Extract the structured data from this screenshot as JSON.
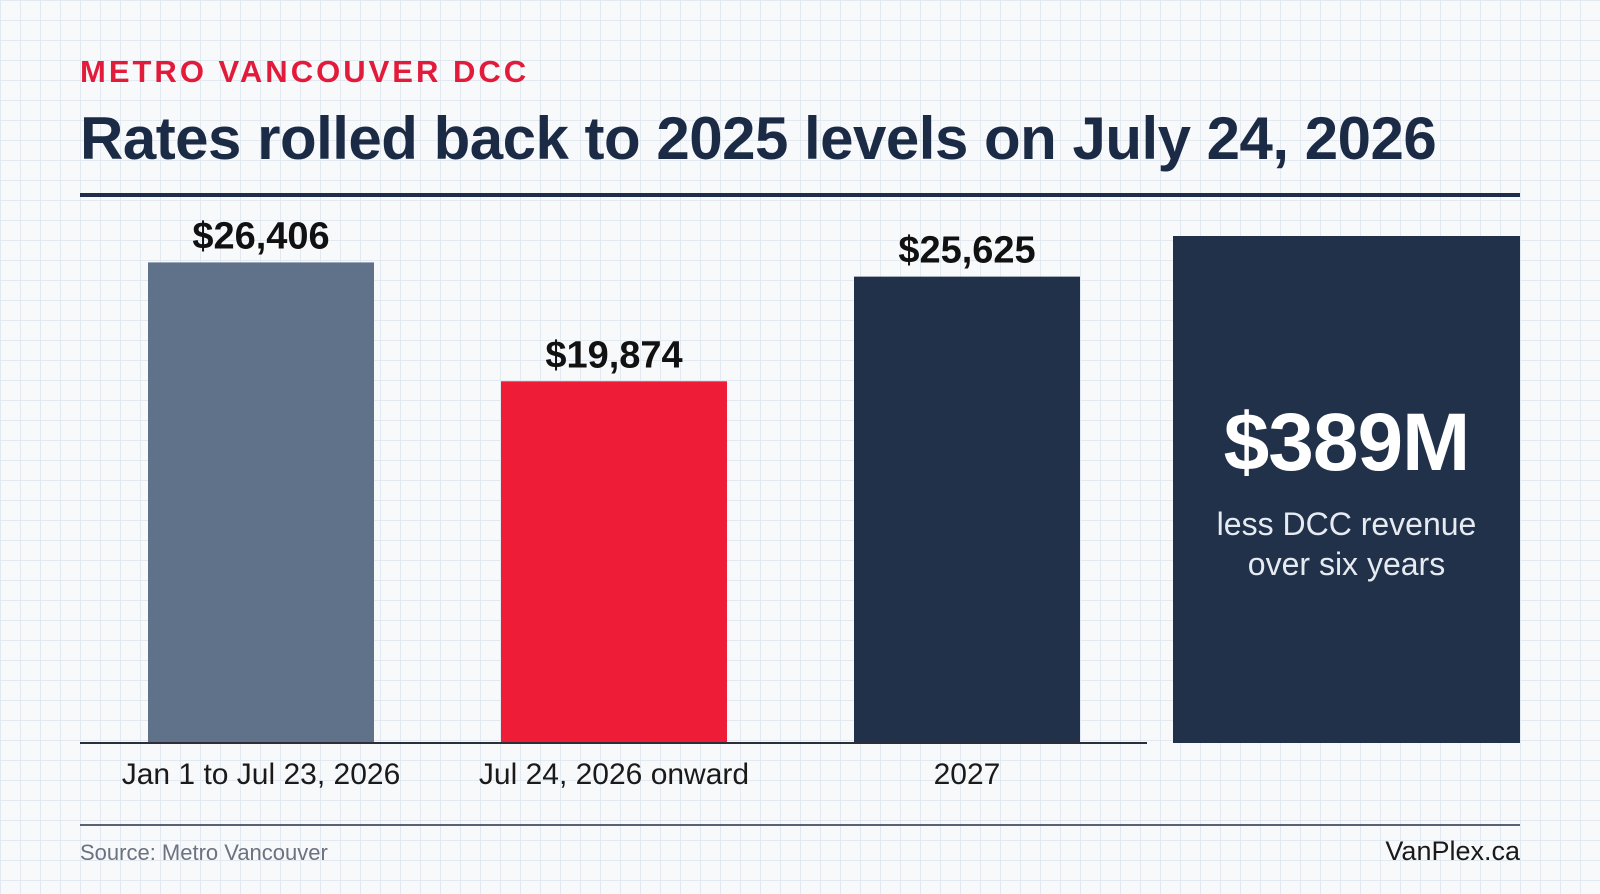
{
  "header": {
    "eyebrow": "METRO VANCOUVER DCC",
    "title": "Rates rolled back to 2025 levels on July 24, 2026"
  },
  "chart_data": {
    "type": "bar",
    "categories": [
      "Jan 1 to Jul 23, 2026",
      "Jul 24, 2026 onward",
      "2027"
    ],
    "values": [
      26406,
      19874,
      25625
    ],
    "value_labels": [
      "$26,406",
      "$19,874",
      "$25,625"
    ],
    "colors": [
      "#5f7289",
      "#ef1c38",
      "#213149"
    ],
    "title": "Rates rolled back to 2025 levels on July 24, 2026",
    "xlabel": "",
    "ylabel": "",
    "ylim": [
      0,
      30000
    ],
    "grid": false
  },
  "callout": {
    "value": "$389M",
    "line1": "less DCC revenue",
    "line2": "over six years"
  },
  "footer": {
    "source": "Source: Metro Vancouver",
    "brand": "VanPlex.ca"
  }
}
